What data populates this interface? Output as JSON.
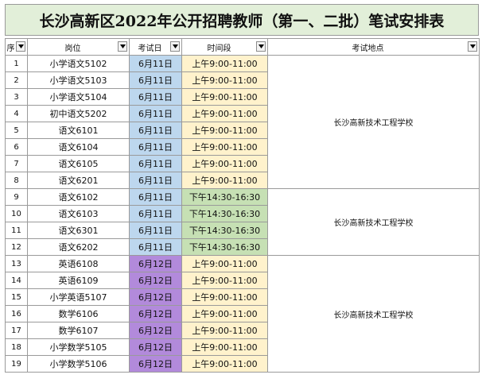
{
  "title": "长沙高新区2022年公开招聘教师（第一、二批）笔试安排表",
  "headers": [
    "序号",
    "岗位",
    "考试日期",
    "时间段",
    "考试地点"
  ],
  "header_visible": [
    "序",
    "岗位",
    "考试日",
    "时间段",
    "考试地点"
  ],
  "rows": [
    {
      "no": "1",
      "post": "小学语文5102",
      "date": "6月11日",
      "time": "上午9:00-11:00"
    },
    {
      "no": "2",
      "post": "小学语文5103",
      "date": "6月11日",
      "time": "上午9:00-11:00"
    },
    {
      "no": "3",
      "post": "小学语文5104",
      "date": "6月11日",
      "time": "上午9:00-11:00"
    },
    {
      "no": "4",
      "post": "初中语文5202",
      "date": "6月11日",
      "time": "上午9:00-11:00"
    },
    {
      "no": "5",
      "post": "语文6101",
      "date": "6月11日",
      "time": "上午9:00-11:00"
    },
    {
      "no": "6",
      "post": "语文6104",
      "date": "6月11日",
      "time": "上午9:00-11:00"
    },
    {
      "no": "7",
      "post": "语文6105",
      "date": "6月11日",
      "time": "上午9:00-11:00"
    },
    {
      "no": "8",
      "post": "语文6201",
      "date": "6月11日",
      "time": "上午9:00-11:00"
    },
    {
      "no": "9",
      "post": "语文6102",
      "date": "6月11日",
      "time": "下午14:30-16:30"
    },
    {
      "no": "10",
      "post": "语文6103",
      "date": "6月11日",
      "time": "下午14:30-16:30"
    },
    {
      "no": "11",
      "post": "语文6301",
      "date": "6月11日",
      "time": "下午14:30-16:30"
    },
    {
      "no": "12",
      "post": "语文6202",
      "date": "6月11日",
      "time": "下午14:30-16:30"
    },
    {
      "no": "13",
      "post": "英语6108",
      "date": "6月12日",
      "time": "上午9:00-11:00"
    },
    {
      "no": "14",
      "post": "英语6109",
      "date": "6月12日",
      "time": "上午9:00-11:00"
    },
    {
      "no": "15",
      "post": "小学英语5107",
      "date": "6月12日",
      "time": "上午9:00-11:00"
    },
    {
      "no": "16",
      "post": "数学6106",
      "date": "6月12日",
      "time": "上午9:00-11:00"
    },
    {
      "no": "17",
      "post": "数学6107",
      "date": "6月12日",
      "time": "上午9:00-11:00"
    },
    {
      "no": "18",
      "post": "小学数学5105",
      "date": "6月12日",
      "time": "上午9:00-11:00"
    },
    {
      "no": "19",
      "post": "小学数学5106",
      "date": "6月12日",
      "time": "上午9:00-11:00"
    }
  ],
  "location_groups": [
    {
      "location": "长沙高新技术工程学校"
    },
    {
      "location": "长沙高新技术工程学校"
    },
    {
      "location": "长沙高新技术工程学校"
    }
  ],
  "colors": {
    "title_bg": "#e2efd9",
    "date_611": "#bdd7ee",
    "date_612": "#b28adb",
    "am": "#fff2cc",
    "pm": "#c6e0b4"
  },
  "icons": {
    "filter": "filter-dropdown-icon"
  }
}
